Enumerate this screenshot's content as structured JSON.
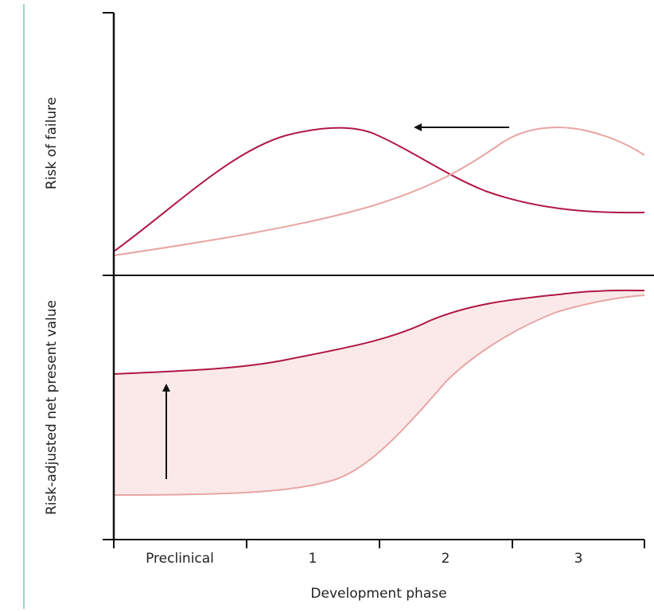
{
  "axes": {
    "top_y_label": "Risk of failure",
    "bottom_y_label": "Risk-adjusted net present value",
    "x_label": "Development phase",
    "x_categories": [
      "Preclinical",
      "1",
      "2",
      "3"
    ]
  }
}
